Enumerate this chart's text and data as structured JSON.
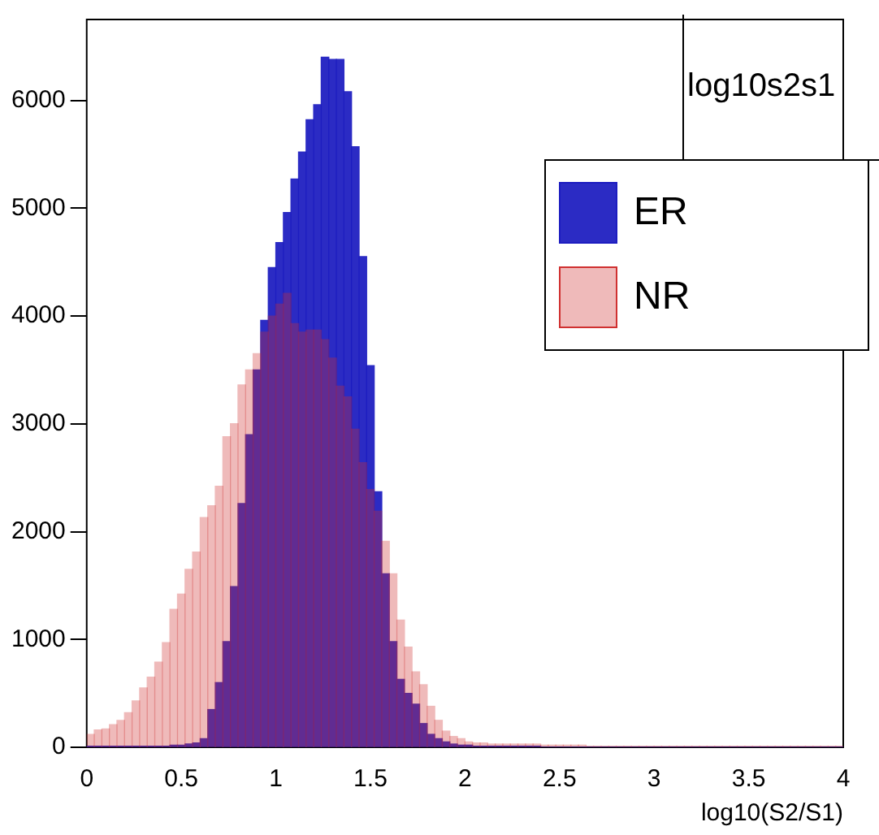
{
  "chart_data": {
    "type": "histogram",
    "title": "log10s2s1",
    "xlabel": "log10(S2/S1)",
    "legend": "top right",
    "bins": [
      0,
      0.04,
      0.08,
      0.12,
      0.16,
      0.2,
      0.24,
      0.28,
      0.32,
      0.36,
      0.4,
      0.44,
      0.48,
      0.52,
      0.56,
      0.6,
      0.64,
      0.68,
      0.72,
      0.76,
      0.8,
      0.84,
      0.88,
      0.92,
      0.96,
      1,
      1.04,
      1.08,
      1.12,
      1.16,
      1.2,
      1.24,
      1.28,
      1.32,
      1.36,
      1.4,
      1.44,
      1.48,
      1.52,
      1.56,
      1.6,
      1.64,
      1.68,
      1.72,
      1.76,
      1.8,
      1.84,
      1.88,
      1.92,
      1.96,
      2,
      2.04,
      2.08,
      2.12,
      2.16,
      2.2,
      2.24,
      2.28,
      2.32,
      2.36,
      2.4,
      2.44,
      2.48,
      2.52,
      2.56,
      2.6,
      2.64,
      2.68,
      2.72,
      2.76,
      2.8,
      2.84,
      2.88,
      2.92,
      2.96,
      3,
      3.04,
      3.08,
      3.12,
      3.16,
      3.2,
      3.24,
      3.28,
      3.32,
      3.36,
      3.4,
      3.44,
      3.48,
      3.52,
      3.56,
      3.6,
      3.64,
      3.68,
      3.72,
      3.76,
      3.8,
      3.84,
      3.88,
      3.92,
      3.96,
      4
    ],
    "series": [
      {
        "name": "ER",
        "color": "#1c1cc0",
        "values": [
          10,
          10,
          10,
          10,
          10,
          10,
          10,
          10,
          10,
          10,
          10,
          20,
          20,
          30,
          40,
          80,
          350,
          600,
          980,
          1490,
          2260,
          2900,
          3500,
          3960,
          4450,
          4680,
          4960,
          5270,
          5520,
          5820,
          5960,
          6400,
          6380,
          6380,
          6080,
          5570,
          4550,
          3540,
          2370,
          1610,
          980,
          630,
          500,
          400,
          220,
          120,
          80,
          50,
          30,
          20,
          20,
          10,
          10,
          10,
          10,
          10,
          10,
          10,
          10,
          10,
          0,
          0,
          0,
          0,
          0,
          0,
          0,
          0,
          0,
          0,
          0,
          0,
          0,
          0,
          0,
          0,
          0,
          0,
          0,
          0,
          0,
          0,
          0,
          0,
          0,
          0,
          0,
          0,
          0,
          0,
          0,
          0,
          0,
          0,
          0,
          0,
          0,
          0,
          0,
          0
        ]
      },
      {
        "name": "NR",
        "color": "#d03030",
        "values": [
          120,
          160,
          170,
          210,
          250,
          320,
          430,
          550,
          650,
          790,
          970,
          1280,
          1420,
          1650,
          1810,
          2130,
          2240,
          2420,
          2880,
          3000,
          3360,
          3500,
          3650,
          3850,
          4000,
          4110,
          4210,
          3930,
          3850,
          3870,
          3870,
          3780,
          3610,
          3350,
          3250,
          2950,
          2640,
          2390,
          2190,
          1910,
          1610,
          1180,
          930,
          700,
          580,
          380,
          250,
          150,
          100,
          80,
          50,
          40,
          40,
          30,
          30,
          30,
          30,
          30,
          30,
          30,
          20,
          20,
          20,
          20,
          20,
          20,
          10,
          10,
          10,
          10,
          10,
          10,
          10,
          10,
          10,
          10,
          10,
          10,
          10,
          10,
          10,
          10,
          10,
          10,
          10,
          10,
          10,
          10,
          10,
          10,
          10,
          10,
          10,
          10,
          10,
          10,
          10,
          10,
          10,
          10
        ]
      }
    ],
    "xlim": [
      0,
      4
    ],
    "xticks": [
      0,
      0.5,
      1,
      1.5,
      2,
      2.5,
      3,
      3.5,
      4
    ],
    "ylim": [
      0,
      6750
    ],
    "yticks": [
      0,
      1000,
      2000,
      3000,
      4000,
      5000,
      6000
    ]
  }
}
